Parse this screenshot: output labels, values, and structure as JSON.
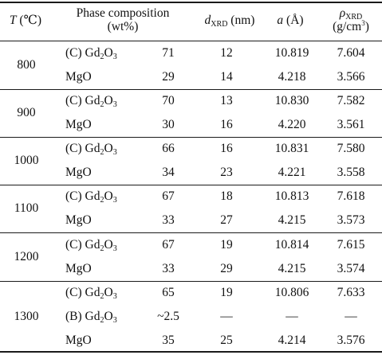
{
  "header": {
    "temp_symbol": "T",
    "temp_unit": " (℃)",
    "phase_line1": "Phase composition",
    "phase_line2": "(wt%)",
    "dxrd_symbol": "d",
    "dxrd_sub": "XRD",
    "dxrd_unit": " (nm)",
    "a_symbol": "a",
    "a_unit": " (Å)",
    "rho_symbol": "ρ",
    "rho_sub": "XRD",
    "rho_unit_pre": "(g/cm",
    "rho_unit_sup": "3",
    "rho_unit_post": ")"
  },
  "groups": [
    {
      "temperature": "800",
      "rows": [
        {
          "phase_prefix": "(C) Gd",
          "phase_s1": "2",
          "phase_mid": "O",
          "phase_s2": "3",
          "wt": "71",
          "d": "12",
          "a": "10.819",
          "rho": "7.604"
        },
        {
          "phase_prefix": "MgO",
          "phase_s1": "",
          "phase_mid": "",
          "phase_s2": "",
          "wt": "29",
          "d": "14",
          "a": "4.218",
          "rho": "3.566"
        }
      ]
    },
    {
      "temperature": "900",
      "rows": [
        {
          "phase_prefix": "(C) Gd",
          "phase_s1": "2",
          "phase_mid": "O",
          "phase_s2": "3",
          "wt": "70",
          "d": "13",
          "a": "10.830",
          "rho": "7.582"
        },
        {
          "phase_prefix": "MgO",
          "phase_s1": "",
          "phase_mid": "",
          "phase_s2": "",
          "wt": "30",
          "d": "16",
          "a": "4.220",
          "rho": "3.561"
        }
      ]
    },
    {
      "temperature": "1000",
      "rows": [
        {
          "phase_prefix": "(C) Gd",
          "phase_s1": "2",
          "phase_mid": "O",
          "phase_s2": "3",
          "wt": "66",
          "d": "16",
          "a": "10.831",
          "rho": "7.580"
        },
        {
          "phase_prefix": "MgO",
          "phase_s1": "",
          "phase_mid": "",
          "phase_s2": "",
          "wt": "34",
          "d": "23",
          "a": "4.221",
          "rho": "3.558"
        }
      ]
    },
    {
      "temperature": "1100",
      "rows": [
        {
          "phase_prefix": "(C) Gd",
          "phase_s1": "2",
          "phase_mid": "O",
          "phase_s2": "3",
          "wt": "67",
          "d": "18",
          "a": "10.813",
          "rho": "7.618"
        },
        {
          "phase_prefix": "MgO",
          "phase_s1": "",
          "phase_mid": "",
          "phase_s2": "",
          "wt": "33",
          "d": "27",
          "a": "4.215",
          "rho": "3.573"
        }
      ]
    },
    {
      "temperature": "1200",
      "rows": [
        {
          "phase_prefix": "(C) Gd",
          "phase_s1": "2",
          "phase_mid": "O",
          "phase_s2": "3",
          "wt": "67",
          "d": "19",
          "a": "10.814",
          "rho": "7.615"
        },
        {
          "phase_prefix": "MgO",
          "phase_s1": "",
          "phase_mid": "",
          "phase_s2": "",
          "wt": "33",
          "d": "29",
          "a": "4.215",
          "rho": "3.574"
        }
      ]
    },
    {
      "temperature": "1300",
      "rows": [
        {
          "phase_prefix": "(C) Gd",
          "phase_s1": "2",
          "phase_mid": "O",
          "phase_s2": "3",
          "wt": "65",
          "d": "19",
          "a": "10.806",
          "rho": "7.633"
        },
        {
          "phase_prefix": "(B) Gd",
          "phase_s1": "2",
          "phase_mid": "O",
          "phase_s2": "3",
          "wt": "~2.5",
          "d": "—",
          "a": "—",
          "rho": "—"
        },
        {
          "phase_prefix": "MgO",
          "phase_s1": "",
          "phase_mid": "",
          "phase_s2": "",
          "wt": "35",
          "d": "25",
          "a": "4.214",
          "rho": "3.576"
        }
      ]
    }
  ]
}
